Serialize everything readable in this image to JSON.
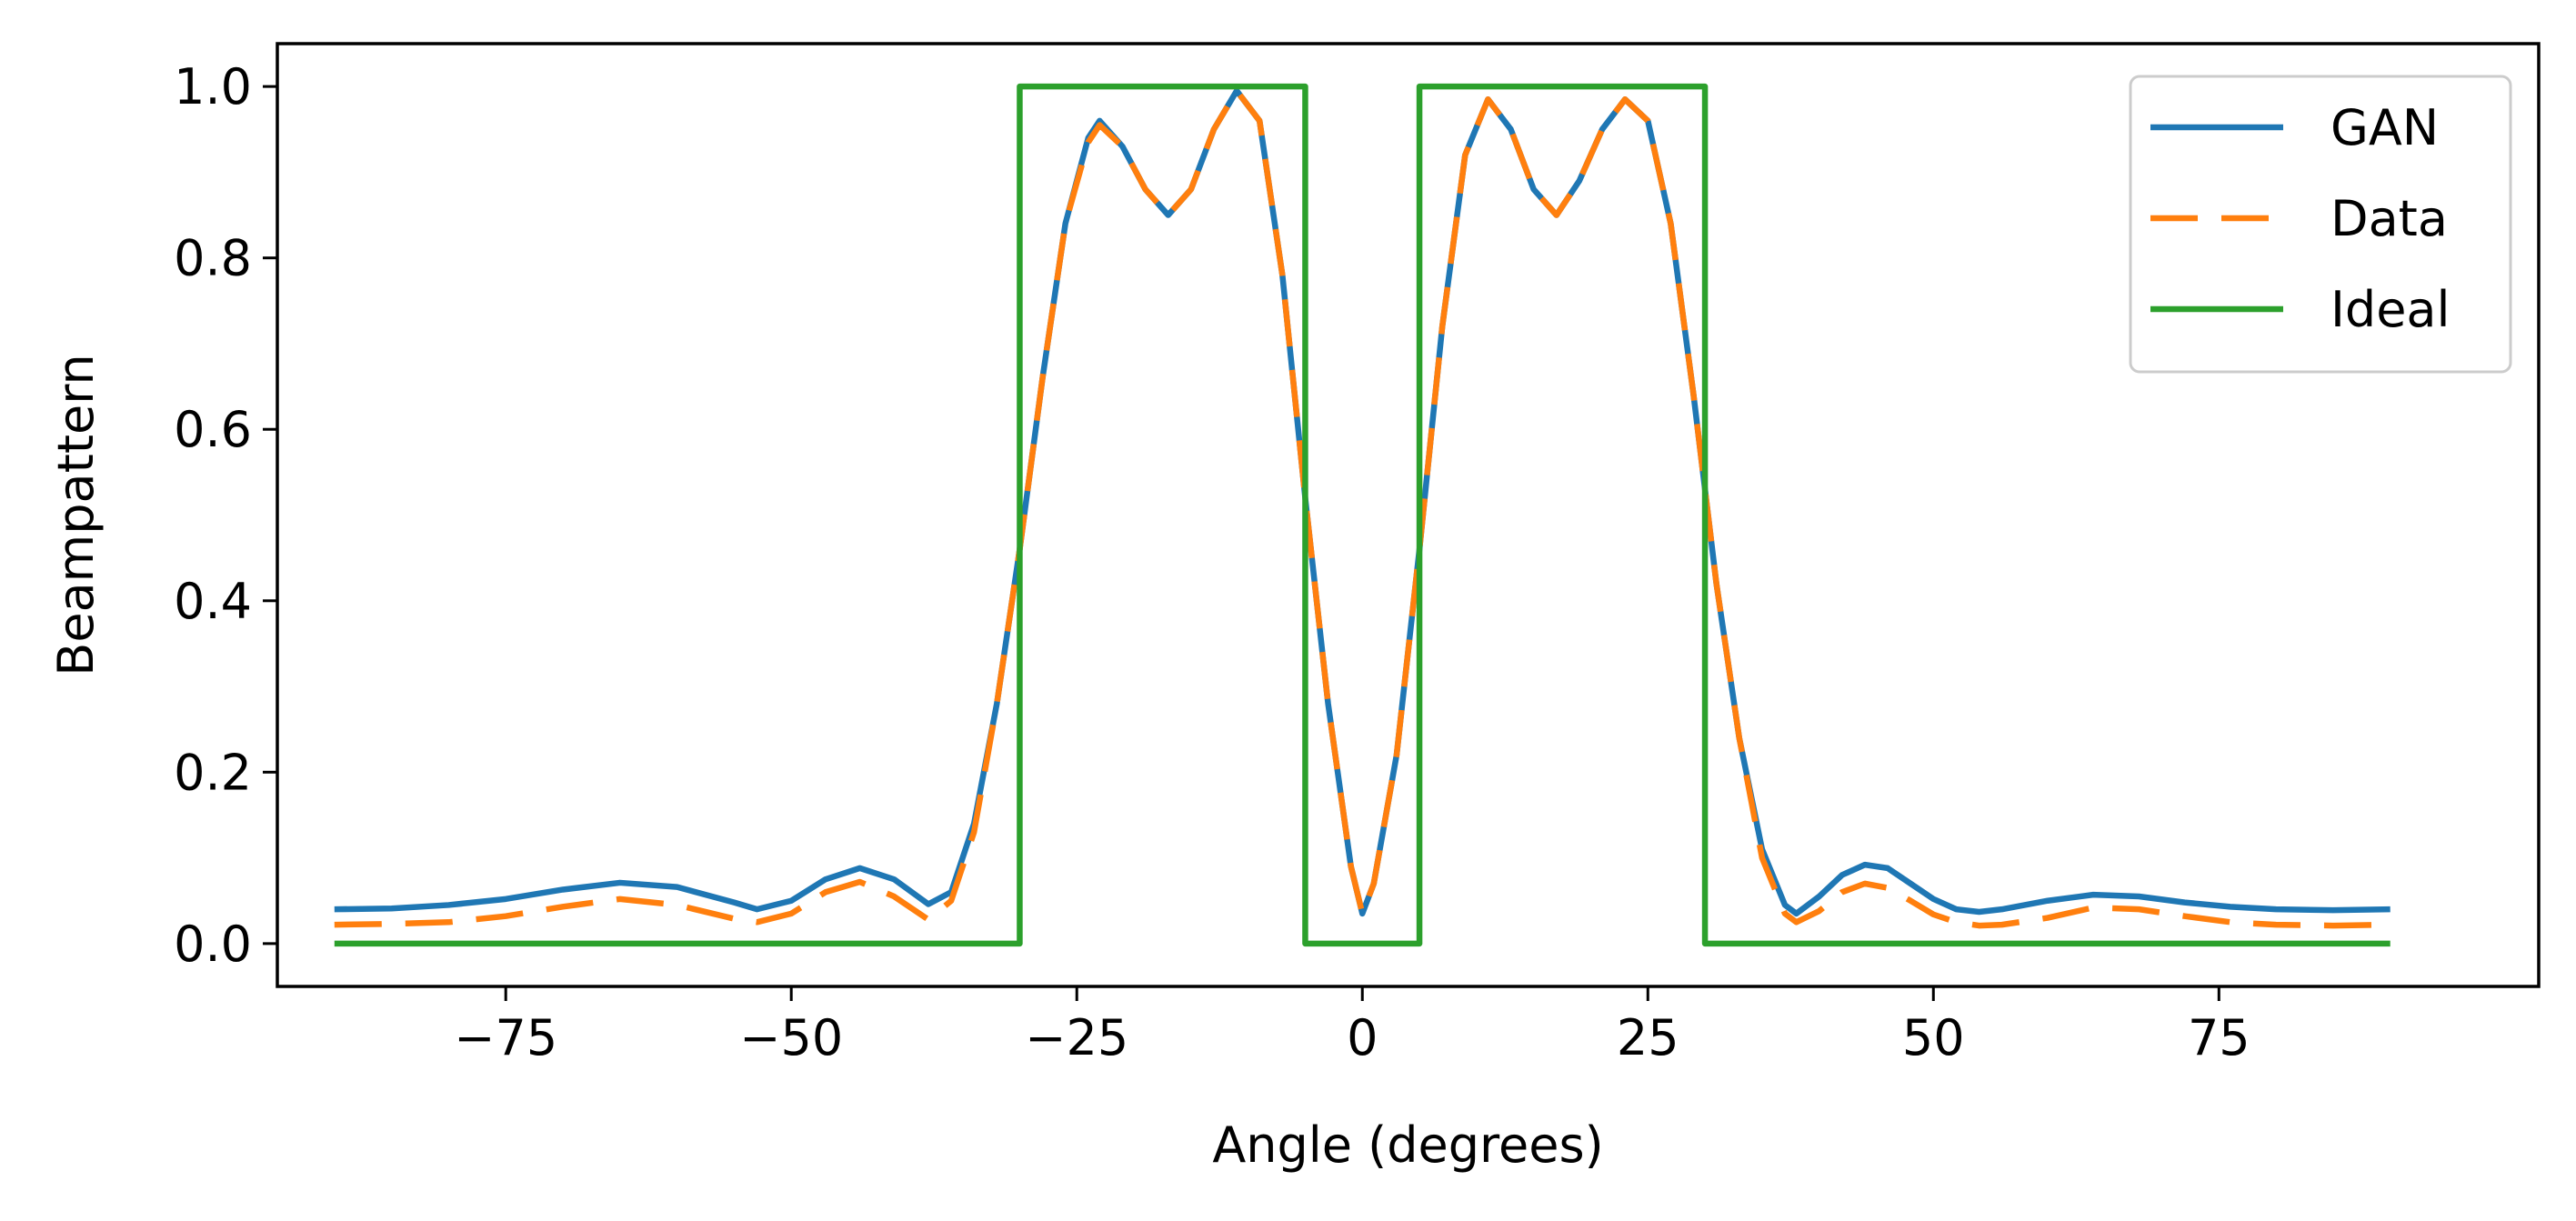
{
  "chart_data": {
    "type": "line",
    "title": "",
    "xlabel": "Angle (degrees)",
    "ylabel": "Beampattern",
    "xlim": [
      -95,
      103
    ],
    "ylim": [
      -0.05,
      1.05
    ],
    "xticks": [
      -75,
      -50,
      -25,
      0,
      25,
      50,
      75
    ],
    "xtick_labels": [
      "−75",
      "−50",
      "−25",
      "0",
      "25",
      "50",
      "75"
    ],
    "yticks": [
      0.0,
      0.2,
      0.4,
      0.6,
      0.8,
      1.0
    ],
    "ytick_labels": [
      "0.0",
      "0.2",
      "0.4",
      "0.6",
      "0.8",
      "1.0"
    ],
    "grid": false,
    "legend_position": "top-right",
    "series": [
      {
        "name": "GAN",
        "color": "#1f77b4",
        "style": "solid",
        "x": [
          -90,
          -85,
          -80,
          -75,
          -70,
          -65,
          -60,
          -55,
          -53,
          -50,
          -47,
          -44,
          -41,
          -38,
          -36,
          -34,
          -32,
          -30,
          -28,
          -26,
          -24,
          -23,
          -21,
          -19,
          -17,
          -15,
          -13,
          -11,
          -9,
          -7,
          -5,
          -3,
          -1,
          0,
          1,
          3,
          5,
          7,
          9,
          11,
          13,
          15,
          17,
          19,
          21,
          23,
          25,
          27,
          29,
          31,
          33,
          35,
          37,
          38,
          40,
          42,
          44,
          46,
          48,
          50,
          52,
          54,
          56,
          60,
          64,
          68,
          72,
          76,
          80,
          85,
          90
        ],
        "y": [
          0.04,
          0.041,
          0.045,
          0.052,
          0.063,
          0.071,
          0.066,
          0.048,
          0.04,
          0.05,
          0.075,
          0.088,
          0.075,
          0.046,
          0.06,
          0.14,
          0.28,
          0.46,
          0.66,
          0.84,
          0.94,
          0.96,
          0.93,
          0.88,
          0.85,
          0.88,
          0.95,
          0.995,
          0.96,
          0.78,
          0.52,
          0.28,
          0.09,
          0.035,
          0.07,
          0.22,
          0.46,
          0.72,
          0.92,
          0.985,
          0.95,
          0.88,
          0.85,
          0.89,
          0.95,
          0.985,
          0.96,
          0.84,
          0.64,
          0.42,
          0.24,
          0.11,
          0.045,
          0.035,
          0.055,
          0.08,
          0.092,
          0.088,
          0.07,
          0.052,
          0.04,
          0.037,
          0.04,
          0.05,
          0.057,
          0.055,
          0.048,
          0.043,
          0.04,
          0.039,
          0.04
        ]
      },
      {
        "name": "Data",
        "color": "#ff7f0e",
        "style": "dashed",
        "x": [
          -90,
          -85,
          -80,
          -75,
          -70,
          -65,
          -60,
          -55,
          -53,
          -50,
          -47,
          -44,
          -41,
          -38,
          -36,
          -34,
          -32,
          -30,
          -28,
          -26,
          -24,
          -23,
          -21,
          -19,
          -17,
          -15,
          -13,
          -11,
          -9,
          -7,
          -5,
          -3,
          -1,
          0,
          1,
          3,
          5,
          7,
          9,
          11,
          13,
          15,
          17,
          19,
          21,
          23,
          25,
          27,
          29,
          31,
          33,
          35,
          37,
          38,
          40,
          42,
          44,
          46,
          48,
          50,
          52,
          54,
          56,
          60,
          64,
          68,
          72,
          76,
          80,
          85,
          90
        ],
        "y": [
          0.022,
          0.023,
          0.025,
          0.032,
          0.043,
          0.052,
          0.045,
          0.029,
          0.025,
          0.035,
          0.06,
          0.072,
          0.055,
          0.028,
          0.05,
          0.13,
          0.28,
          0.46,
          0.66,
          0.84,
          0.935,
          0.955,
          0.93,
          0.88,
          0.85,
          0.88,
          0.95,
          0.995,
          0.96,
          0.78,
          0.52,
          0.28,
          0.09,
          0.035,
          0.07,
          0.22,
          0.46,
          0.72,
          0.92,
          0.985,
          0.95,
          0.88,
          0.85,
          0.89,
          0.95,
          0.985,
          0.96,
          0.84,
          0.64,
          0.42,
          0.24,
          0.1,
          0.035,
          0.025,
          0.038,
          0.06,
          0.07,
          0.065,
          0.05,
          0.034,
          0.025,
          0.021,
          0.022,
          0.03,
          0.042,
          0.04,
          0.032,
          0.025,
          0.022,
          0.021,
          0.022
        ]
      },
      {
        "name": "Ideal",
        "color": "#2ca02c",
        "style": "solid",
        "x": [
          -90,
          -30,
          -30,
          -5,
          -5,
          5,
          5,
          30,
          30,
          90
        ],
        "y": [
          0,
          0,
          1,
          1,
          0,
          0,
          1,
          1,
          0,
          0
        ]
      }
    ]
  }
}
